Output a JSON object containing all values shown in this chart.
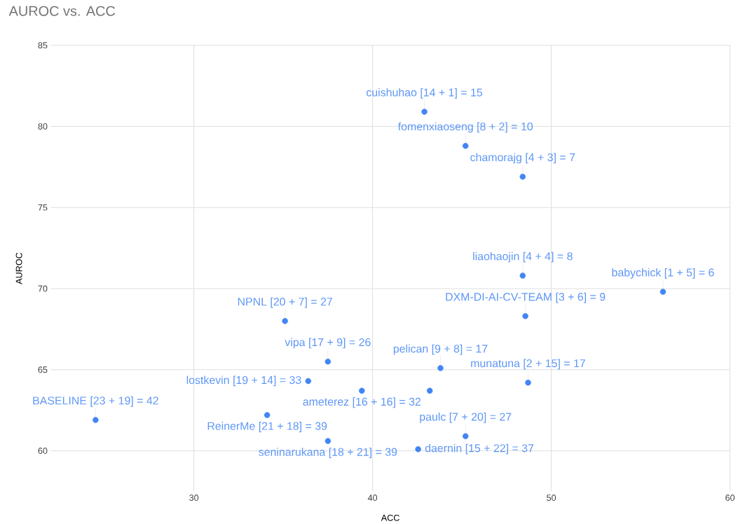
{
  "chart_data": {
    "type": "scatter",
    "title": "AUROC vs. ACC",
    "xlabel": "ACC",
    "ylabel": "AUROC",
    "series": [
      {
        "color": "#4285f4",
        "x": [
          42.9,
          45.2,
          48.4,
          48.4,
          56.25,
          48.55,
          35.1,
          37.5,
          43.8,
          36.4,
          39.4,
          43.2,
          48.7,
          34.1,
          24.5,
          37.5,
          45.2,
          42.55
        ],
        "values": [
          80.9,
          78.8,
          76.9,
          70.8,
          69.8,
          68.3,
          68.0,
          65.5,
          65.1,
          64.3,
          63.7,
          63.7,
          64.2,
          62.2,
          61.9,
          60.6,
          60.9,
          60.1
        ]
      }
    ],
    "annotations": [
      {
        "text": "cuishuhao [14 + 1] = 15",
        "x": 42.9,
        "y": 80.9
      },
      {
        "text": "fomenxiaoseng [8 + 2] = 10",
        "x": 45.2,
        "y": 78.8
      },
      {
        "text": "chamorajg [4 + 3] = 7",
        "x": 48.4,
        "y": 76.9
      },
      {
        "text": "liaohaojin [4 + 4] = 8",
        "x": 48.4,
        "y": 70.8
      },
      {
        "text": "babychick [1 + 5] = 6",
        "x": 56.25,
        "y": 69.8
      },
      {
        "text": "DXM-DI-AI-CV-TEAM [3 + 6] = 9",
        "x": 48.55,
        "y": 68.3
      },
      {
        "text": "NPNL [20 + 7] = 27",
        "x": 35.1,
        "y": 68.0
      },
      {
        "text": "vipa [17 + 9] = 26",
        "x": 37.5,
        "y": 65.5
      },
      {
        "text": "pelican [9 + 8] = 17",
        "x": 43.8,
        "y": 65.1
      },
      {
        "text": "lostkevin [19 + 14] = 33",
        "x": 36.4,
        "y": 64.3
      },
      {
        "text": "ameterez [16 + 16] = 32",
        "x": 39.4,
        "y": 63.7
      },
      {
        "text": "munatuna [2 + 15] = 17",
        "x": 48.7,
        "y": 64.2
      },
      {
        "text": "ReinerMe [21 + 18] = 39",
        "x": 34.1,
        "y": 62.2
      },
      {
        "text": "BASELINE [23 + 19] = 42",
        "x": 24.5,
        "y": 61.9
      },
      {
        "text": "seninarukana [18 + 21] = 39",
        "x": 37.5,
        "y": 60.6
      },
      {
        "text": "paulc [7 + 20] = 27",
        "x": 45.2,
        "y": 60.9
      },
      {
        "text": "daernin [15 + 22] = 37",
        "x": 42.55,
        "y": 60.1
      }
    ],
    "xlim": [
      22,
      60
    ],
    "ylim": [
      57.5,
      85
    ],
    "xticks": [
      30,
      40,
      50,
      60
    ],
    "yticks": [
      60,
      65,
      70,
      75,
      80,
      85
    ],
    "grid": true
  }
}
